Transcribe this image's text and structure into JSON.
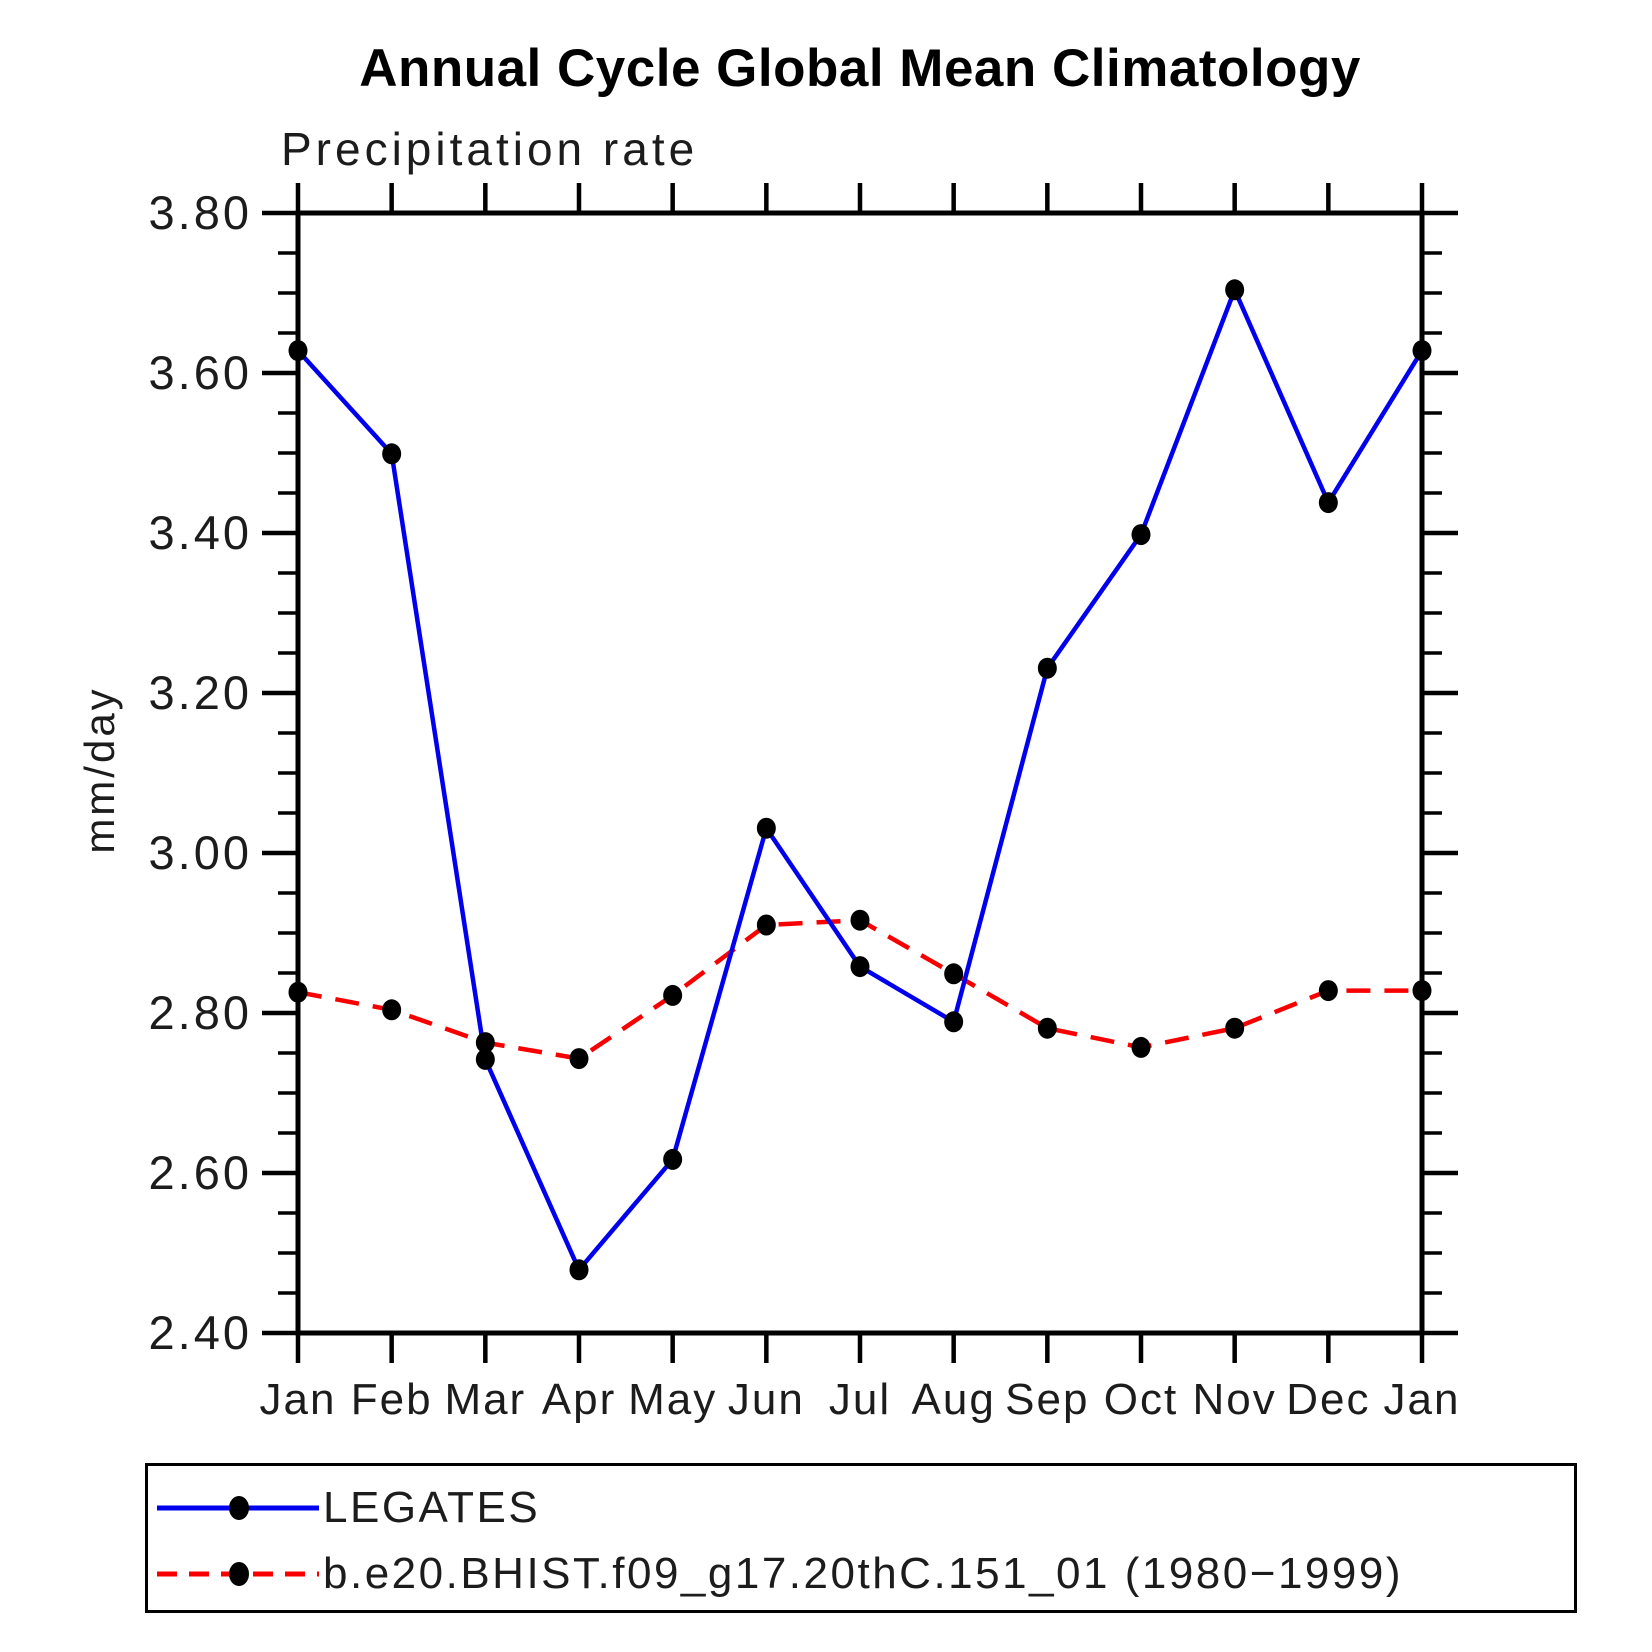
{
  "header": {
    "title": "Annual Cycle Global Mean Climatology",
    "subtitle": "Precipitation rate"
  },
  "y_axis": {
    "label": "mm/day"
  },
  "legend": {
    "entries": [
      {
        "label": "LEGATES",
        "color": "#0000ee",
        "line_style": "solid",
        "marker_color": "#000000"
      },
      {
        "label": "b.e20.BHIST.f09_g17.20thC.151_01 (1980−1999)",
        "color": "#f80000",
        "line_style": "dashed",
        "marker_color": "#000000"
      }
    ]
  },
  "chart_data": {
    "type": "line",
    "title": "Annual Cycle Global Mean Climatology",
    "subtitle": "Precipitation rate",
    "xlabel": "",
    "ylabel": "mm/day",
    "categories": [
      "Jan",
      "Feb",
      "Mar",
      "Apr",
      "May",
      "Jun",
      "Jul",
      "Aug",
      "Sep",
      "Oct",
      "Nov",
      "Dec",
      "Jan"
    ],
    "series": [
      {
        "name": "LEGATES",
        "color": "#0000ee",
        "line_style": "solid",
        "marker": "filled-circle",
        "marker_color": "#000000",
        "values": [
          3.628,
          3.499,
          2.742,
          2.479,
          2.617,
          3.031,
          2.858,
          2.789,
          3.231,
          3.398,
          3.704,
          3.438,
          3.628
        ]
      },
      {
        "name": "b.e20.BHIST.f09_g17.20thC.151_01 (1980−1999)",
        "color": "#f80000",
        "line_style": "dashed",
        "marker": "filled-circle",
        "marker_color": "#000000",
        "values": [
          2.826,
          2.804,
          2.763,
          2.743,
          2.822,
          2.91,
          2.916,
          2.849,
          2.781,
          2.757,
          2.781,
          2.828,
          2.828
        ]
      }
    ],
    "ylim": [
      2.4,
      3.8
    ],
    "ytick_step": 0.2,
    "yminor_step": 0.05,
    "ytick_labels": [
      "2.40",
      "2.60",
      "2.80",
      "3.00",
      "3.20",
      "3.40",
      "3.60",
      "3.80"
    ],
    "grid": false,
    "tick_direction": "out",
    "legend_position": "bottom-box",
    "axis_color": "#000000"
  }
}
